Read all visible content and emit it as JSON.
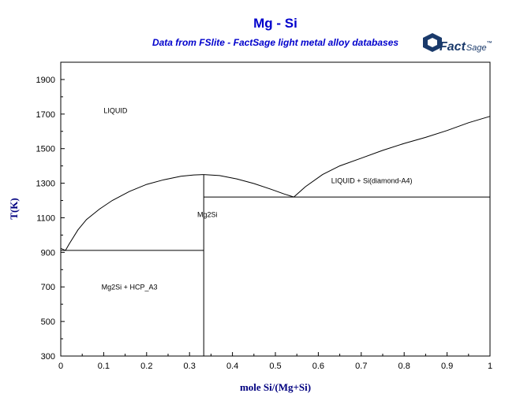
{
  "logo": {
    "brand": "FactSage",
    "word1": "Fact",
    "word2": "Sage",
    "mark": "™"
  },
  "chart_data": {
    "type": "line",
    "title": "Mg - Si",
    "subtitle": "Data from FSlite - FactSage light metal alloy databases",
    "xlabel": "mole Si/(Mg+Si)",
    "ylabel": "T(K)",
    "xlim": [
      0,
      1
    ],
    "ylim": [
      300,
      2000
    ],
    "x_ticks": [
      0,
      0.1,
      0.2,
      0.3,
      0.4,
      0.5,
      0.6,
      0.7,
      0.8,
      0.9,
      1
    ],
    "x_tick_labels": [
      "0",
      "0.1",
      "0.2",
      "0.3",
      "0.4",
      "0.5",
      "0.6",
      "0.7",
      "0.8",
      "0.9",
      "1"
    ],
    "y_ticks": [
      300,
      500,
      700,
      900,
      1100,
      1300,
      1500,
      1700,
      1900
    ],
    "y_tick_labels": [
      "300",
      "500",
      "700",
      "900",
      "1100",
      "1300",
      "1500",
      "1700",
      "1900"
    ],
    "grid": false,
    "series": [
      {
        "x": [
          0,
          0.011,
          0.02,
          0.04,
          0.06,
          0.09,
          0.12,
          0.16,
          0.2,
          0.24,
          0.28,
          0.31,
          0.333
        ],
        "y": [
          923,
          911,
          950,
          1030,
          1090,
          1150,
          1200,
          1252,
          1293,
          1320,
          1340,
          1348,
          1350
        ]
      },
      {
        "x": [
          0.333,
          0.37,
          0.41,
          0.45,
          0.49,
          0.52,
          0.543
        ],
        "y": [
          1350,
          1344,
          1325,
          1298,
          1265,
          1238,
          1220
        ]
      },
      {
        "x": [
          0.543,
          0.57,
          0.61,
          0.65,
          0.7,
          0.75,
          0.8,
          0.85,
          0.9,
          0.95,
          1
        ],
        "y": [
          1220,
          1280,
          1350,
          1400,
          1445,
          1490,
          1530,
          1565,
          1605,
          1650,
          1687
        ]
      },
      {
        "x": [
          0,
          0.333
        ],
        "y": [
          911,
          911
        ]
      },
      {
        "x": [
          0.333,
          1
        ],
        "y": [
          1220,
          1220
        ]
      },
      {
        "x": [
          0.333,
          0.333
        ],
        "y": [
          300,
          1350
        ]
      }
    ],
    "annotations": [
      {
        "text": "LIQUID",
        "x": 0.1,
        "y": 1705
      },
      {
        "text": "LIQUID + Si(diamond-A4)",
        "x": 0.63,
        "y": 1300
      },
      {
        "text": "Mg2Si",
        "x": 0.318,
        "y": 1105
      },
      {
        "text": "Mg2Si + HCP_A3",
        "x": 0.095,
        "y": 685
      }
    ]
  }
}
